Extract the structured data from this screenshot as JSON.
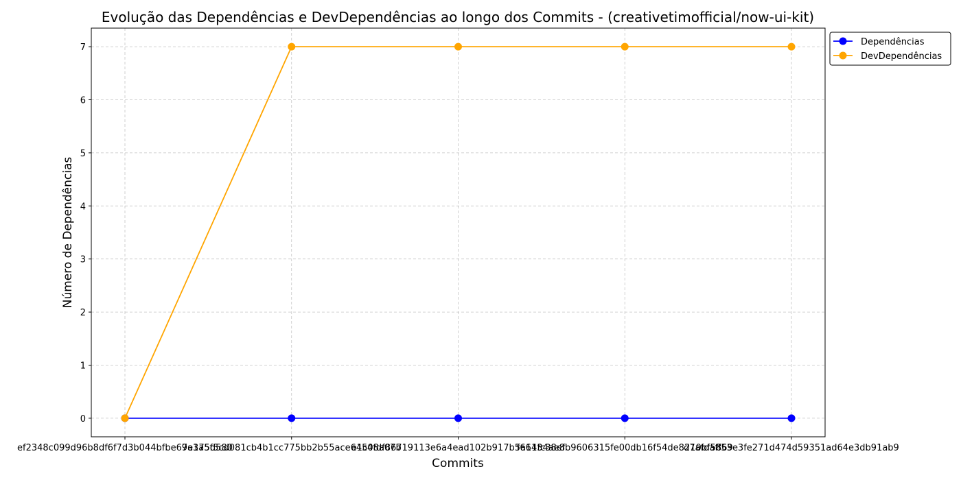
{
  "chart_data": {
    "type": "line",
    "title": "Evolução das Dependências e DevDependências ao longo dos Commits - (creativetimofficial/now-ui-kit)",
    "xlabel": "Commits",
    "ylabel": "Número de Dependências",
    "categories": [
      "ef2348c099d96b8df6f7d3b044bfbe67e175d580",
      "9a3a5f5cd081cb4b1cc775bb2b55ace64508a07b",
      "e1c4fdf86719113e6a4ead102b917b5a11fc38ef",
      "f66434ae8b9606315fe00db16f54de8210bf5869",
      "d7afdaff53e3fe271d474d59351ad64e3db91ab9"
    ],
    "series": [
      {
        "name": "Dependências",
        "values": [
          0,
          0,
          0,
          0,
          0
        ],
        "color": "#0000ff"
      },
      {
        "name": "DevDependências",
        "values": [
          0,
          7,
          7,
          7,
          7
        ],
        "color": "#ffa500"
      }
    ],
    "ylim": [
      -0.35,
      7.35
    ],
    "yticks": [
      0,
      1,
      2,
      3,
      4,
      5,
      6,
      7
    ],
    "grid": true,
    "legend_position": "outside-top-right"
  }
}
